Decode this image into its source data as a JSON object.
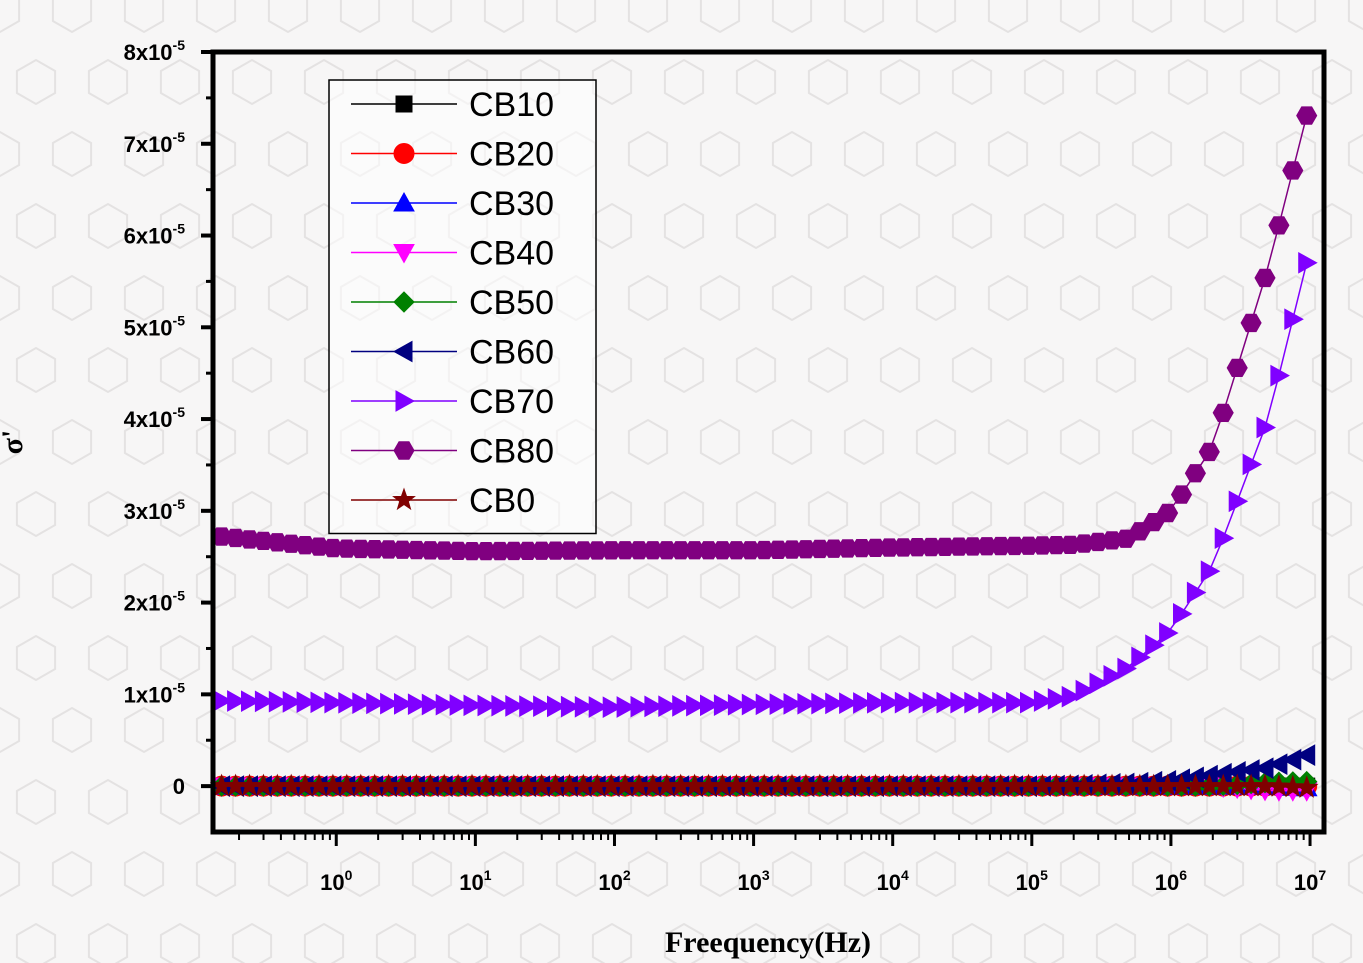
{
  "chart_data": {
    "type": "scatter",
    "xlabel": "Freequency(Hz)",
    "ylabel": "σ'",
    "x_scale": "log",
    "xlim": [
      0.13,
      12600000
    ],
    "ylim": [
      -5e-06,
      8e-05
    ],
    "x_ticks": [
      {
        "base": "10",
        "exp": "0",
        "value": 1
      },
      {
        "base": "10",
        "exp": "1",
        "value": 10
      },
      {
        "base": "10",
        "exp": "2",
        "value": 100
      },
      {
        "base": "10",
        "exp": "3",
        "value": 1000
      },
      {
        "base": "10",
        "exp": "4",
        "value": 10000
      },
      {
        "base": "10",
        "exp": "5",
        "value": 100000
      },
      {
        "base": "10",
        "exp": "6",
        "value": 1000000
      },
      {
        "base": "10",
        "exp": "7",
        "value": 10000000
      }
    ],
    "y_ticks": [
      {
        "base": "0",
        "exp": "",
        "value": 0
      },
      {
        "base": "1x10",
        "exp": "-5",
        "value": 1e-05
      },
      {
        "base": "2x10",
        "exp": "-5",
        "value": 2e-05
      },
      {
        "base": "3x10",
        "exp": "-5",
        "value": 3e-05
      },
      {
        "base": "4x10",
        "exp": "-5",
        "value": 4e-05
      },
      {
        "base": "5x10",
        "exp": "-5",
        "value": 5e-05
      },
      {
        "base": "6x10",
        "exp": "-5",
        "value": 6e-05
      },
      {
        "base": "7x10",
        "exp": "-5",
        "value": 7e-05
      },
      {
        "base": "8x10",
        "exp": "-5",
        "value": 8e-05
      }
    ],
    "legend_position": "top-left",
    "x": [
      0.15,
      1,
      10,
      100,
      1000,
      10000,
      100000,
      200000,
      500000,
      1000000,
      2000000,
      5000000,
      10000000
    ],
    "series": [
      {
        "name": "CB10",
        "color": "#000000",
        "marker": "square",
        "values": [
          0,
          0,
          0,
          0,
          0,
          0,
          0,
          0,
          0,
          0,
          0,
          0,
          0
        ]
      },
      {
        "name": "CB20",
        "color": "#ff0000",
        "marker": "circle",
        "values": [
          0,
          0,
          0,
          0,
          0,
          0,
          0,
          0,
          0,
          0,
          0,
          0,
          0
        ]
      },
      {
        "name": "CB30",
        "color": "#0000ff",
        "marker": "triangle-up",
        "values": [
          0,
          0,
          0,
          0,
          0,
          0,
          0,
          0,
          0,
          0,
          0,
          0,
          -2e-07
        ]
      },
      {
        "name": "CB40",
        "color": "#ff00ff",
        "marker": "triangle-down",
        "values": [
          0,
          0,
          0,
          0,
          0,
          0,
          0,
          0,
          0,
          0,
          0,
          -5e-07,
          -5e-07
        ]
      },
      {
        "name": "CB50",
        "color": "#008000",
        "marker": "diamond",
        "values": [
          0,
          0,
          0,
          0,
          0,
          0,
          0,
          0,
          0,
          0,
          0,
          4e-07,
          5e-07
        ]
      },
      {
        "name": "CB60",
        "color": "#000080",
        "marker": "triangle-left",
        "values": [
          0,
          0,
          0,
          0,
          0,
          0,
          0,
          1e-07,
          3e-07,
          6e-07,
          1.2e-06,
          2e-06,
          3.5e-06
        ]
      },
      {
        "name": "CB70",
        "color": "#8000ff",
        "marker": "triangle-right",
        "values": [
          9.3e-06,
          9.1e-06,
          8.8e-06,
          8.6e-06,
          8.9e-06,
          9.1e-06,
          9.1e-06,
          9.8e-06,
          1.3e-05,
          1.7e-05,
          2.4e-05,
          4e-05,
          5.85e-05
        ]
      },
      {
        "name": "CB80",
        "color": "#800080",
        "marker": "hexagon",
        "values": [
          2.72e-05,
          2.59e-05,
          2.56e-05,
          2.57e-05,
          2.57e-05,
          2.6e-05,
          2.62e-05,
          2.63e-05,
          2.7e-05,
          3e-05,
          3.7e-05,
          5.65e-05,
          7.45e-05
        ]
      },
      {
        "name": "CB0",
        "color": "#800000",
        "marker": "star",
        "values": [
          0,
          0,
          0,
          0,
          0,
          0,
          0,
          0,
          0,
          0,
          0,
          0,
          -2e-07
        ]
      }
    ]
  }
}
